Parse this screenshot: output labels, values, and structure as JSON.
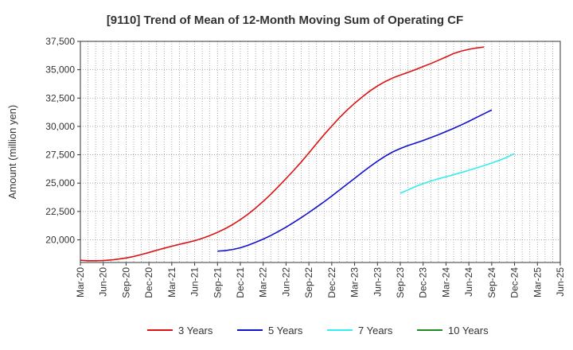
{
  "chart_data": {
    "type": "line",
    "title": "[9110]  Trend of Mean of 12-Month Moving Sum of Operating CF",
    "xlabel": "",
    "ylabel": "Amount (million yen)",
    "ylim": [
      18000,
      37500
    ],
    "yticks": [
      20000,
      22500,
      25000,
      27500,
      30000,
      32500,
      35000,
      37500
    ],
    "ytick_labels": [
      "20,000",
      "22,500",
      "25,000",
      "27,500",
      "30,000",
      "32,500",
      "35,000",
      "37,500"
    ],
    "xticks": [
      "Mar-20",
      "Jun-20",
      "Sep-20",
      "Dec-20",
      "Mar-21",
      "Jun-21",
      "Sep-21",
      "Dec-21",
      "Mar-22",
      "Jun-22",
      "Sep-22",
      "Dec-22",
      "Mar-23",
      "Jun-23",
      "Sep-23",
      "Dec-23",
      "Mar-24",
      "Jun-24",
      "Sep-24",
      "Dec-24",
      "Mar-25",
      "Jun-25"
    ],
    "grid": true,
    "legend_position": "bottom",
    "series": [
      {
        "name": "3 Years",
        "color": "#dd1111",
        "start_index": 0,
        "values": [
          18200,
          18150,
          18150,
          18170,
          18220,
          18300,
          18400,
          18530,
          18700,
          18880,
          19080,
          19260,
          19440,
          19600,
          19760,
          19920,
          20130,
          20380,
          20660,
          20980,
          21350,
          21780,
          22260,
          22800,
          23390,
          24020,
          24700,
          25400,
          26120,
          26870,
          27660,
          28480,
          29280,
          30030,
          30760,
          31430,
          32040,
          32600,
          33120,
          33570,
          33950,
          34270,
          34530,
          34760,
          35010,
          35280,
          35540,
          35830,
          36120,
          36430,
          36640,
          36800,
          36920,
          37000
        ]
      },
      {
        "name": "5 Years",
        "color": "#1111cc",
        "start_index": 18,
        "values": [
          19000,
          19050,
          19150,
          19300,
          19520,
          19780,
          20060,
          20380,
          20740,
          21120,
          21530,
          21960,
          22410,
          22880,
          23360,
          23860,
          24380,
          24900,
          25420,
          25940,
          26450,
          26930,
          27370,
          27750,
          28050,
          28310,
          28530,
          28760,
          29010,
          29270,
          29550,
          29830,
          30130,
          30450,
          30790,
          31120,
          31450
        ]
      },
      {
        "name": "7 Years",
        "color": "#33eeee",
        "start_index": 42,
        "values": [
          24100,
          24400,
          24700,
          24950,
          25180,
          25380,
          25560,
          25740,
          25930,
          26130,
          26340,
          26550,
          26770,
          27010,
          27280,
          27600
        ]
      },
      {
        "name": "10 Years",
        "color": "#228822",
        "start_index": 0,
        "values": []
      }
    ]
  }
}
